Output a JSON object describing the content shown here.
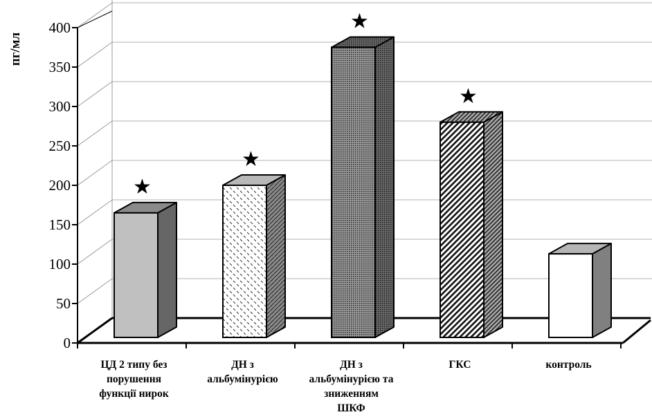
{
  "chart_data": {
    "type": "bar",
    "title": "",
    "xlabel": "",
    "ylabel": "пг/мл",
    "ylim": [
      0,
      400
    ],
    "yticks": [
      0,
      50,
      100,
      150,
      200,
      250,
      300,
      350,
      400
    ],
    "grid": true,
    "categories": [
      [
        "ЦД 2 типу без",
        "порушення",
        "функції нирок"
      ],
      [
        "ДН з",
        "альбумінурією"
      ],
      [
        "ДН з",
        "альбумінурією та",
        "зниженням",
        "ШКФ"
      ],
      [
        "ГКС"
      ],
      [
        "контроль"
      ]
    ],
    "values": [
      158,
      193,
      368,
      273,
      106
    ],
    "markers": [
      "★",
      "★",
      "★",
      "★",
      ""
    ],
    "patterns": [
      "solid-light-gray",
      "dashes",
      "dots-dark",
      "diagonal-stripes",
      "white"
    ]
  }
}
